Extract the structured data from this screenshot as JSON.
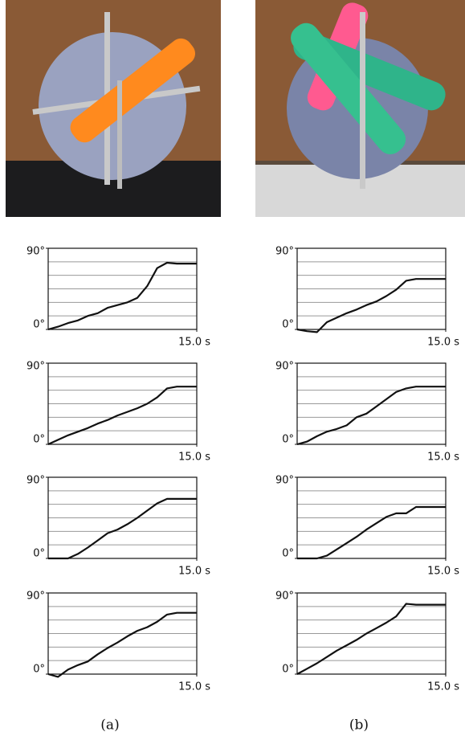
{
  "chart_data": [
    {
      "type": "line",
      "color": "#111111",
      "x": [
        0,
        1,
        2,
        3,
        4,
        5,
        6,
        7,
        8,
        9,
        10,
        11,
        12,
        13,
        14,
        15
      ],
      "values": [
        0,
        3,
        7,
        10,
        15,
        18,
        24,
        27,
        30,
        35,
        48,
        68,
        74,
        73,
        73,
        73
      ],
      "xlim": [
        0,
        15
      ],
      "ylim": [
        0,
        90
      ],
      "xticks": [
        {
          "value": 15,
          "label": "15.0 s"
        }
      ],
      "yticks": [
        {
          "value": 0,
          "label": "0°"
        },
        {
          "value": 90,
          "label": "90°"
        }
      ],
      "grid_y": [
        15,
        30,
        45,
        60,
        75
      ]
    },
    {
      "type": "line",
      "color": "#111111",
      "x": [
        0,
        1,
        2,
        3,
        4,
        5,
        6,
        7,
        8,
        9,
        10,
        11,
        12,
        13,
        14,
        15
      ],
      "values": [
        0,
        5,
        10,
        14,
        18,
        23,
        27,
        32,
        36,
        40,
        45,
        52,
        62,
        64,
        64,
        64
      ],
      "xlim": [
        0,
        15
      ],
      "ylim": [
        0,
        90
      ],
      "xticks": [
        {
          "value": 15,
          "label": "15.0 s"
        }
      ],
      "yticks": [
        {
          "value": 0,
          "label": "0°"
        },
        {
          "value": 90,
          "label": "90°"
        }
      ],
      "grid_y": [
        15,
        30,
        45,
        60,
        75
      ]
    },
    {
      "type": "line",
      "color": "#111111",
      "x": [
        0,
        1,
        2,
        3,
        4,
        5,
        6,
        7,
        8,
        9,
        10,
        11,
        12,
        13,
        14,
        15
      ],
      "values": [
        0,
        0,
        0,
        5,
        12,
        20,
        28,
        32,
        38,
        45,
        53,
        61,
        66,
        66,
        66,
        66
      ],
      "xlim": [
        0,
        15
      ],
      "ylim": [
        0,
        90
      ],
      "xticks": [
        {
          "value": 15,
          "label": "15.0 s"
        }
      ],
      "yticks": [
        {
          "value": 0,
          "label": "0°"
        },
        {
          "value": 90,
          "label": "90°"
        }
      ],
      "grid_y": [
        15,
        30,
        45,
        60,
        75
      ]
    },
    {
      "type": "line",
      "color": "#111111",
      "x": [
        0,
        1,
        2,
        3,
        4,
        5,
        6,
        7,
        8,
        9,
        10,
        11,
        12,
        13,
        14,
        15
      ],
      "values": [
        0,
        -3,
        5,
        10,
        14,
        22,
        29,
        35,
        42,
        48,
        52,
        58,
        66,
        68,
        68,
        68
      ],
      "xlim": [
        0,
        15
      ],
      "ylim": [
        0,
        90
      ],
      "xticks": [
        {
          "value": 15,
          "label": "15.0 s"
        }
      ],
      "yticks": [
        {
          "value": 0,
          "label": "0°"
        },
        {
          "value": 90,
          "label": "90°"
        }
      ],
      "grid_y": [
        15,
        30,
        45,
        60,
        75
      ]
    },
    {
      "type": "line",
      "color": "#111111",
      "x": [
        0,
        1,
        2,
        3,
        4,
        5,
        6,
        7,
        8,
        9,
        10,
        11,
        12,
        13,
        14,
        15
      ],
      "values": [
        0,
        -2,
        -3,
        8,
        13,
        18,
        22,
        27,
        31,
        37,
        44,
        54,
        56,
        56,
        56,
        56
      ],
      "xlim": [
        0,
        15
      ],
      "ylim": [
        0,
        90
      ],
      "xticks": [
        {
          "value": 15,
          "label": "15.0 s"
        }
      ],
      "yticks": [
        {
          "value": 0,
          "label": "0°"
        },
        {
          "value": 90,
          "label": "90°"
        }
      ],
      "grid_y": [
        15,
        30,
        45,
        60,
        75
      ]
    },
    {
      "type": "line",
      "color": "#111111",
      "x": [
        0,
        1,
        2,
        3,
        4,
        5,
        6,
        7,
        8,
        9,
        10,
        11,
        12,
        13,
        14,
        15
      ],
      "values": [
        0,
        3,
        9,
        14,
        17,
        21,
        30,
        34,
        42,
        50,
        58,
        62,
        64,
        64,
        64,
        64
      ],
      "xlim": [
        0,
        15
      ],
      "ylim": [
        0,
        90
      ],
      "xticks": [
        {
          "value": 15,
          "label": "15.0 s"
        }
      ],
      "yticks": [
        {
          "value": 0,
          "label": "0°"
        },
        {
          "value": 90,
          "label": "90°"
        }
      ],
      "grid_y": [
        15,
        30,
        45,
        60,
        75
      ]
    },
    {
      "type": "line",
      "color": "#111111",
      "x": [
        0,
        1,
        2,
        3,
        4,
        5,
        6,
        7,
        8,
        9,
        10,
        11,
        12,
        13,
        14,
        15
      ],
      "values": [
        0,
        0,
        0,
        3,
        10,
        17,
        24,
        32,
        39,
        46,
        50,
        50,
        57,
        57,
        57,
        57
      ],
      "xlim": [
        0,
        15
      ],
      "ylim": [
        0,
        90
      ],
      "xticks": [
        {
          "value": 15,
          "label": "15.0 s"
        }
      ],
      "yticks": [
        {
          "value": 0,
          "label": "0°"
        },
        {
          "value": 90,
          "label": "90°"
        }
      ],
      "grid_y": [
        15,
        30,
        45,
        60,
        75
      ]
    },
    {
      "type": "line",
      "color": "#111111",
      "x": [
        0,
        1,
        2,
        3,
        4,
        5,
        6,
        7,
        8,
        9,
        10,
        11,
        12,
        13,
        14,
        15
      ],
      "values": [
        0,
        6,
        12,
        19,
        26,
        32,
        38,
        45,
        51,
        57,
        64,
        78,
        77,
        77,
        77,
        77
      ],
      "xlim": [
        0,
        15
      ],
      "ylim": [
        0,
        90
      ],
      "xticks": [
        {
          "value": 15,
          "label": "15.0 s"
        }
      ],
      "yticks": [
        {
          "value": 0,
          "label": "0°"
        },
        {
          "value": 90,
          "label": "90°"
        }
      ],
      "grid_y": [
        15,
        30,
        45,
        60,
        75
      ]
    }
  ],
  "captions": [
    "(a)",
    "(b)"
  ]
}
